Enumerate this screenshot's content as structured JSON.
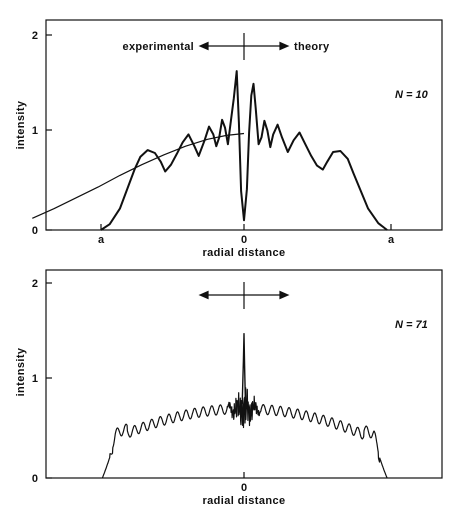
{
  "chart_data": [
    {
      "type": "line",
      "ylabel": "intensity",
      "xlabel": "radial distance",
      "ylim": [
        0,
        2.1
      ],
      "xlim": [
        -1.45,
        1.45
      ],
      "y_ticks": [
        "0",
        "1",
        "2"
      ],
      "x_ticks": [
        {
          "value": -1.0,
          "label": "a"
        },
        {
          "value": 0.0,
          "label": "0"
        },
        {
          "value": 1.0,
          "label": "a"
        }
      ],
      "annotation_left": "experimental",
      "annotation_right": "theory",
      "n_label": "N = 10",
      "grid": false,
      "series": [
        {
          "points": [
            [
              -0.98,
              0.0
            ],
            [
              -0.92,
              0.06
            ],
            [
              -0.85,
              0.22
            ],
            [
              -0.8,
              0.42
            ],
            [
              -0.75,
              0.62
            ],
            [
              -0.71,
              0.75
            ],
            [
              -0.66,
              0.82
            ],
            [
              -0.61,
              0.79
            ],
            [
              -0.57,
              0.7
            ],
            [
              -0.54,
              0.6
            ],
            [
              -0.5,
              0.67
            ],
            [
              -0.46,
              0.78
            ],
            [
              -0.42,
              0.9
            ],
            [
              -0.38,
              0.98
            ],
            [
              -0.34,
              0.86
            ],
            [
              -0.31,
              0.76
            ],
            [
              -0.27,
              0.92
            ],
            [
              -0.24,
              1.06
            ],
            [
              -0.21,
              0.98
            ],
            [
              -0.19,
              0.86
            ],
            [
              -0.17,
              0.95
            ],
            [
              -0.15,
              1.13
            ],
            [
              -0.13,
              1.05
            ],
            [
              -0.11,
              0.88
            ],
            [
              -0.09,
              1.12
            ],
            [
              -0.07,
              1.35
            ],
            [
              -0.05,
              1.63
            ],
            [
              -0.035,
              1.1
            ],
            [
              -0.02,
              0.4
            ],
            [
              0.0,
              0.1
            ],
            [
              0.02,
              0.42
            ],
            [
              0.035,
              1.0
            ],
            [
              0.05,
              1.38
            ],
            [
              0.065,
              1.5
            ],
            [
              0.08,
              1.25
            ],
            [
              0.1,
              0.88
            ],
            [
              0.12,
              0.95
            ],
            [
              0.14,
              1.12
            ],
            [
              0.16,
              1.02
            ],
            [
              0.18,
              0.85
            ],
            [
              0.2,
              0.98
            ],
            [
              0.23,
              1.08
            ],
            [
              0.26,
              0.95
            ],
            [
              0.3,
              0.8
            ],
            [
              0.34,
              0.92
            ],
            [
              0.38,
              1.0
            ],
            [
              0.42,
              0.88
            ],
            [
              0.46,
              0.76
            ],
            [
              0.5,
              0.66
            ],
            [
              0.54,
              0.62
            ],
            [
              0.57,
              0.7
            ],
            [
              0.61,
              0.8
            ],
            [
              0.66,
              0.81
            ],
            [
              0.71,
              0.73
            ],
            [
              0.75,
              0.58
            ],
            [
              0.8,
              0.4
            ],
            [
              0.85,
              0.22
            ],
            [
              0.92,
              0.07
            ],
            [
              0.98,
              0.0
            ]
          ]
        },
        {
          "points": [
            [
              -1.45,
              0.12
            ],
            [
              -1.3,
              0.22
            ],
            [
              -1.15,
              0.33
            ],
            [
              -1.0,
              0.44
            ],
            [
              -0.85,
              0.56
            ],
            [
              -0.7,
              0.67
            ],
            [
              -0.55,
              0.77
            ],
            [
              -0.4,
              0.86
            ],
            [
              -0.25,
              0.93
            ],
            [
              -0.12,
              0.97
            ],
            [
              0.0,
              0.99
            ]
          ]
        }
      ]
    },
    {
      "type": "line",
      "ylabel": "intensity",
      "xlabel": "radial distance",
      "ylim": [
        0,
        2.1
      ],
      "xlim": [
        -1.45,
        1.45
      ],
      "y_ticks": [
        "0",
        "1",
        "2"
      ],
      "x_ticks": [
        {
          "value": 0.0,
          "label": "0"
        }
      ],
      "n_label": "N = 71",
      "grid": false,
      "series": [
        {
          "envelope": {
            "x_edges": [
              -0.97,
              0.98
            ],
            "shoulder_left": [
              -0.88,
              0.42
            ],
            "shoulder_right": [
              0.9,
              0.47
            ],
            "center_baseline": 0.71,
            "center_peak": 1.48,
            "ripple_amplitude": 0.05,
            "ripple_count": 34
          }
        }
      ]
    }
  ]
}
